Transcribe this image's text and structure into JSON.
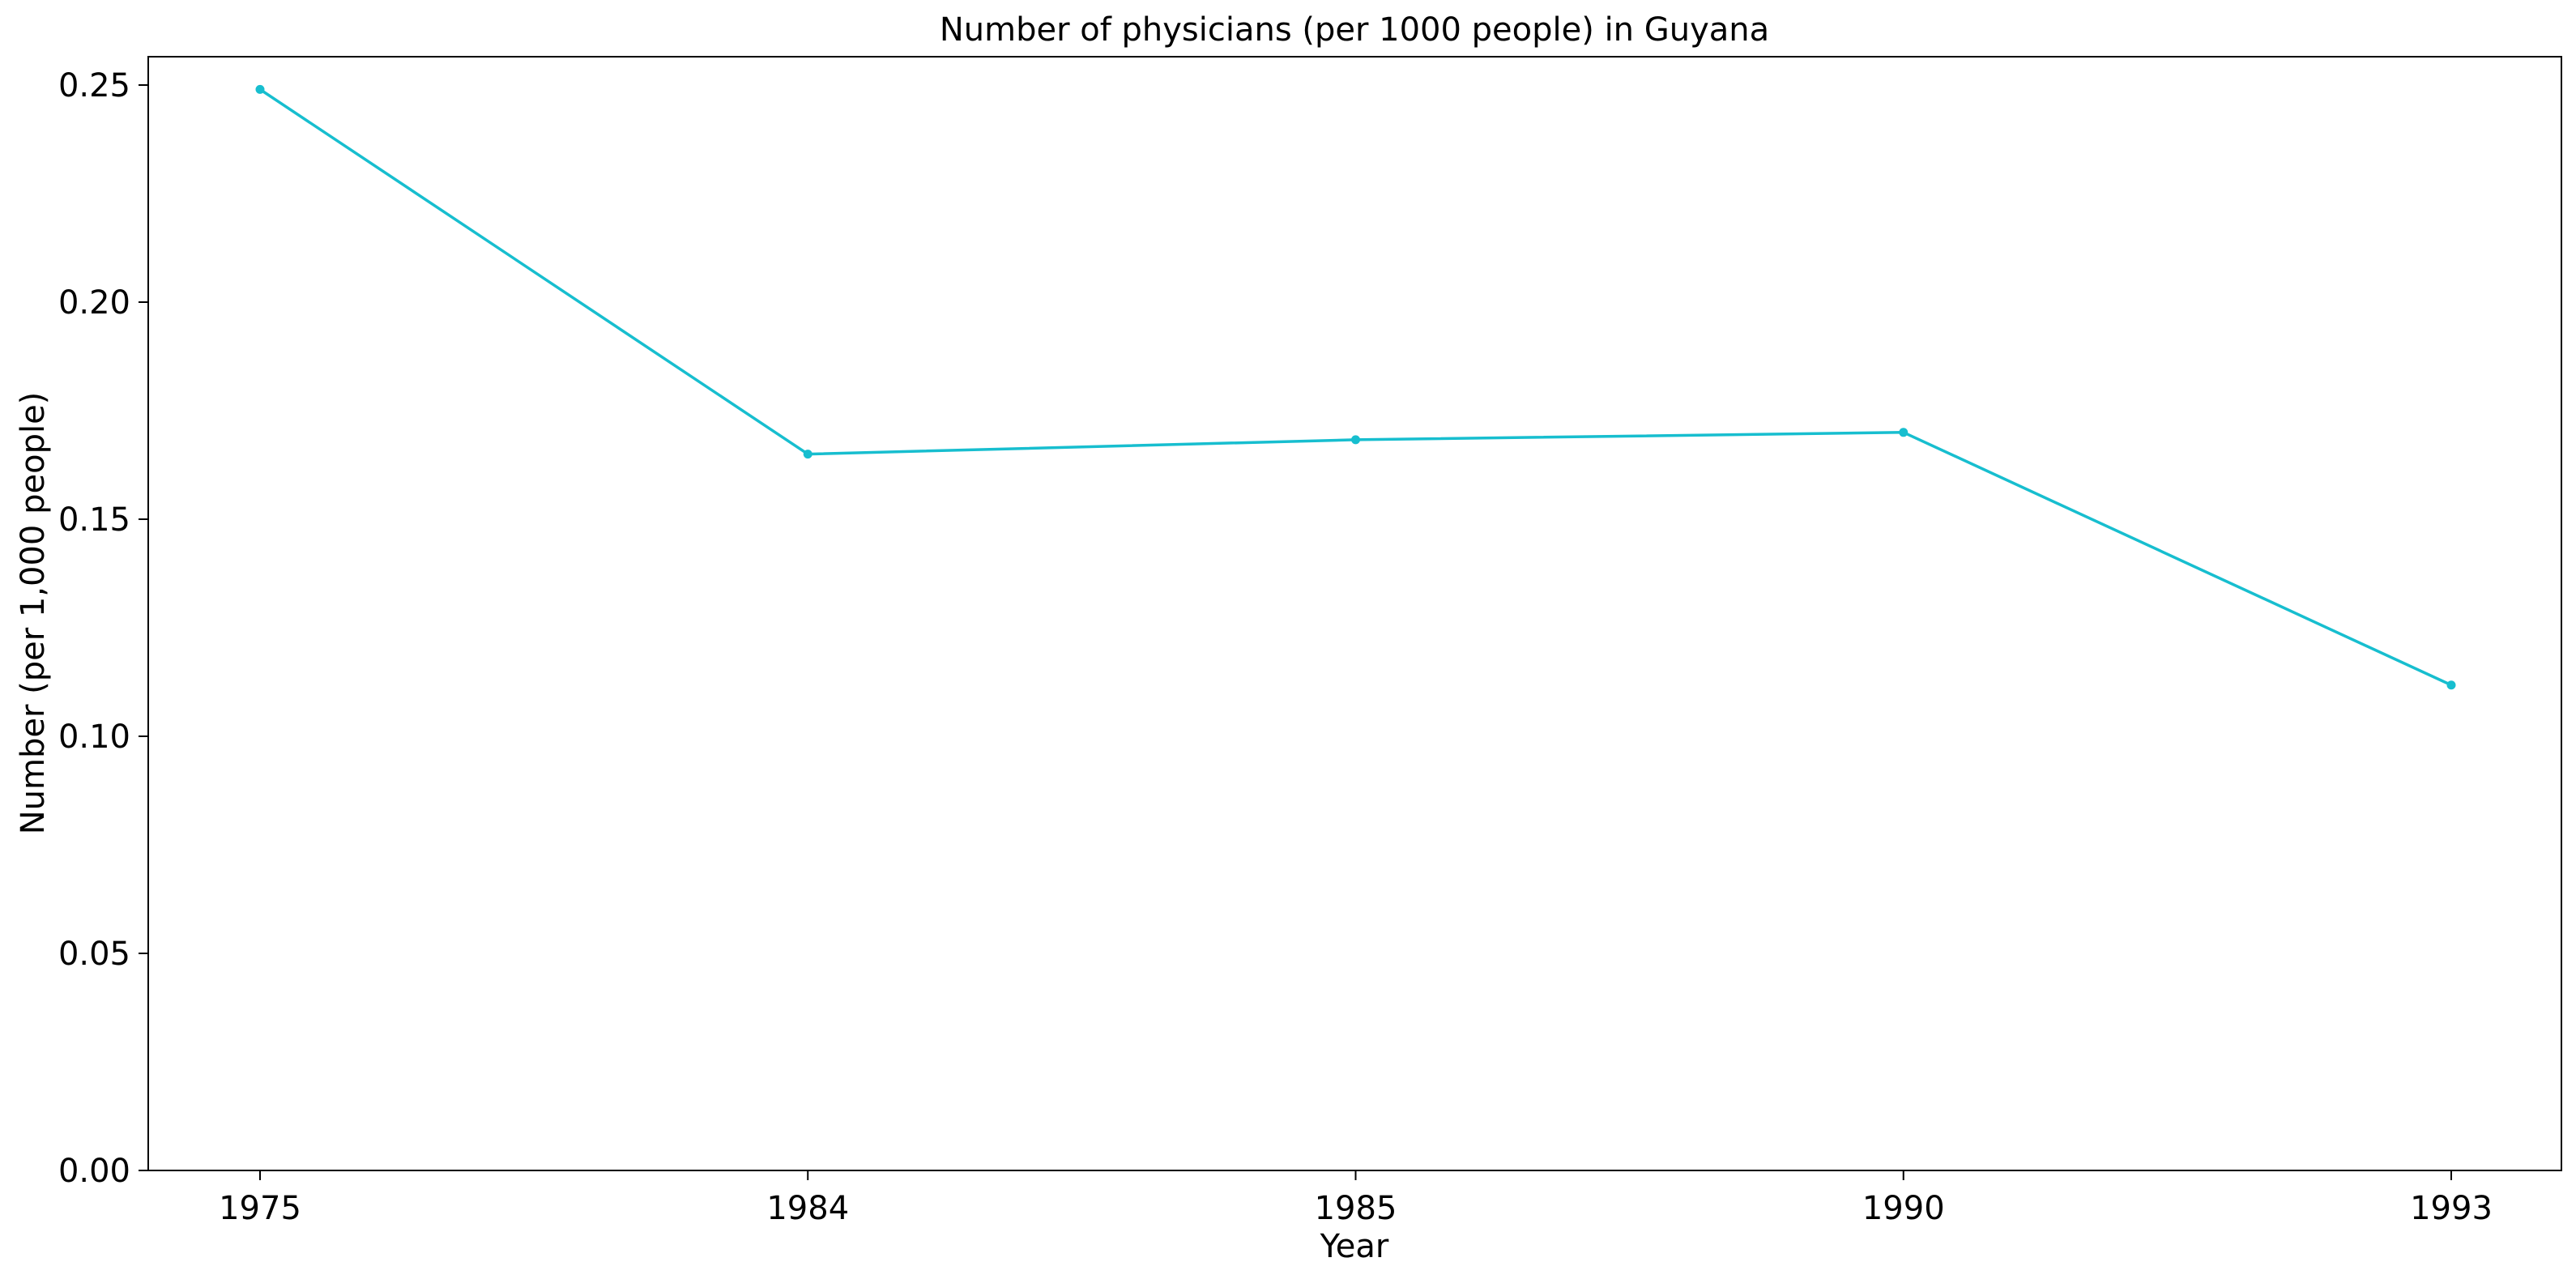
{
  "chart_data": {
    "type": "line",
    "title": "Number of physicians (per 1000 people) in Guyana",
    "xlabel": "Year",
    "ylabel": "Number (per 1,000 people)",
    "categories": [
      "1975",
      "1984",
      "1985",
      "1990",
      "1993"
    ],
    "series": [
      {
        "values": [
          0.249,
          0.165,
          0.1683,
          0.17,
          0.1118
        ],
        "color": "#17becf",
        "marker": "circle"
      }
    ],
    "ylim": [
      0,
      0.25
    ],
    "yticks": [
      0.0,
      0.05,
      0.1,
      0.15,
      0.2,
      0.25
    ],
    "ytick_labels": [
      "0.00",
      "0.05",
      "0.10",
      "0.15",
      "0.20",
      "0.25"
    ],
    "grid": false,
    "legend": false
  }
}
